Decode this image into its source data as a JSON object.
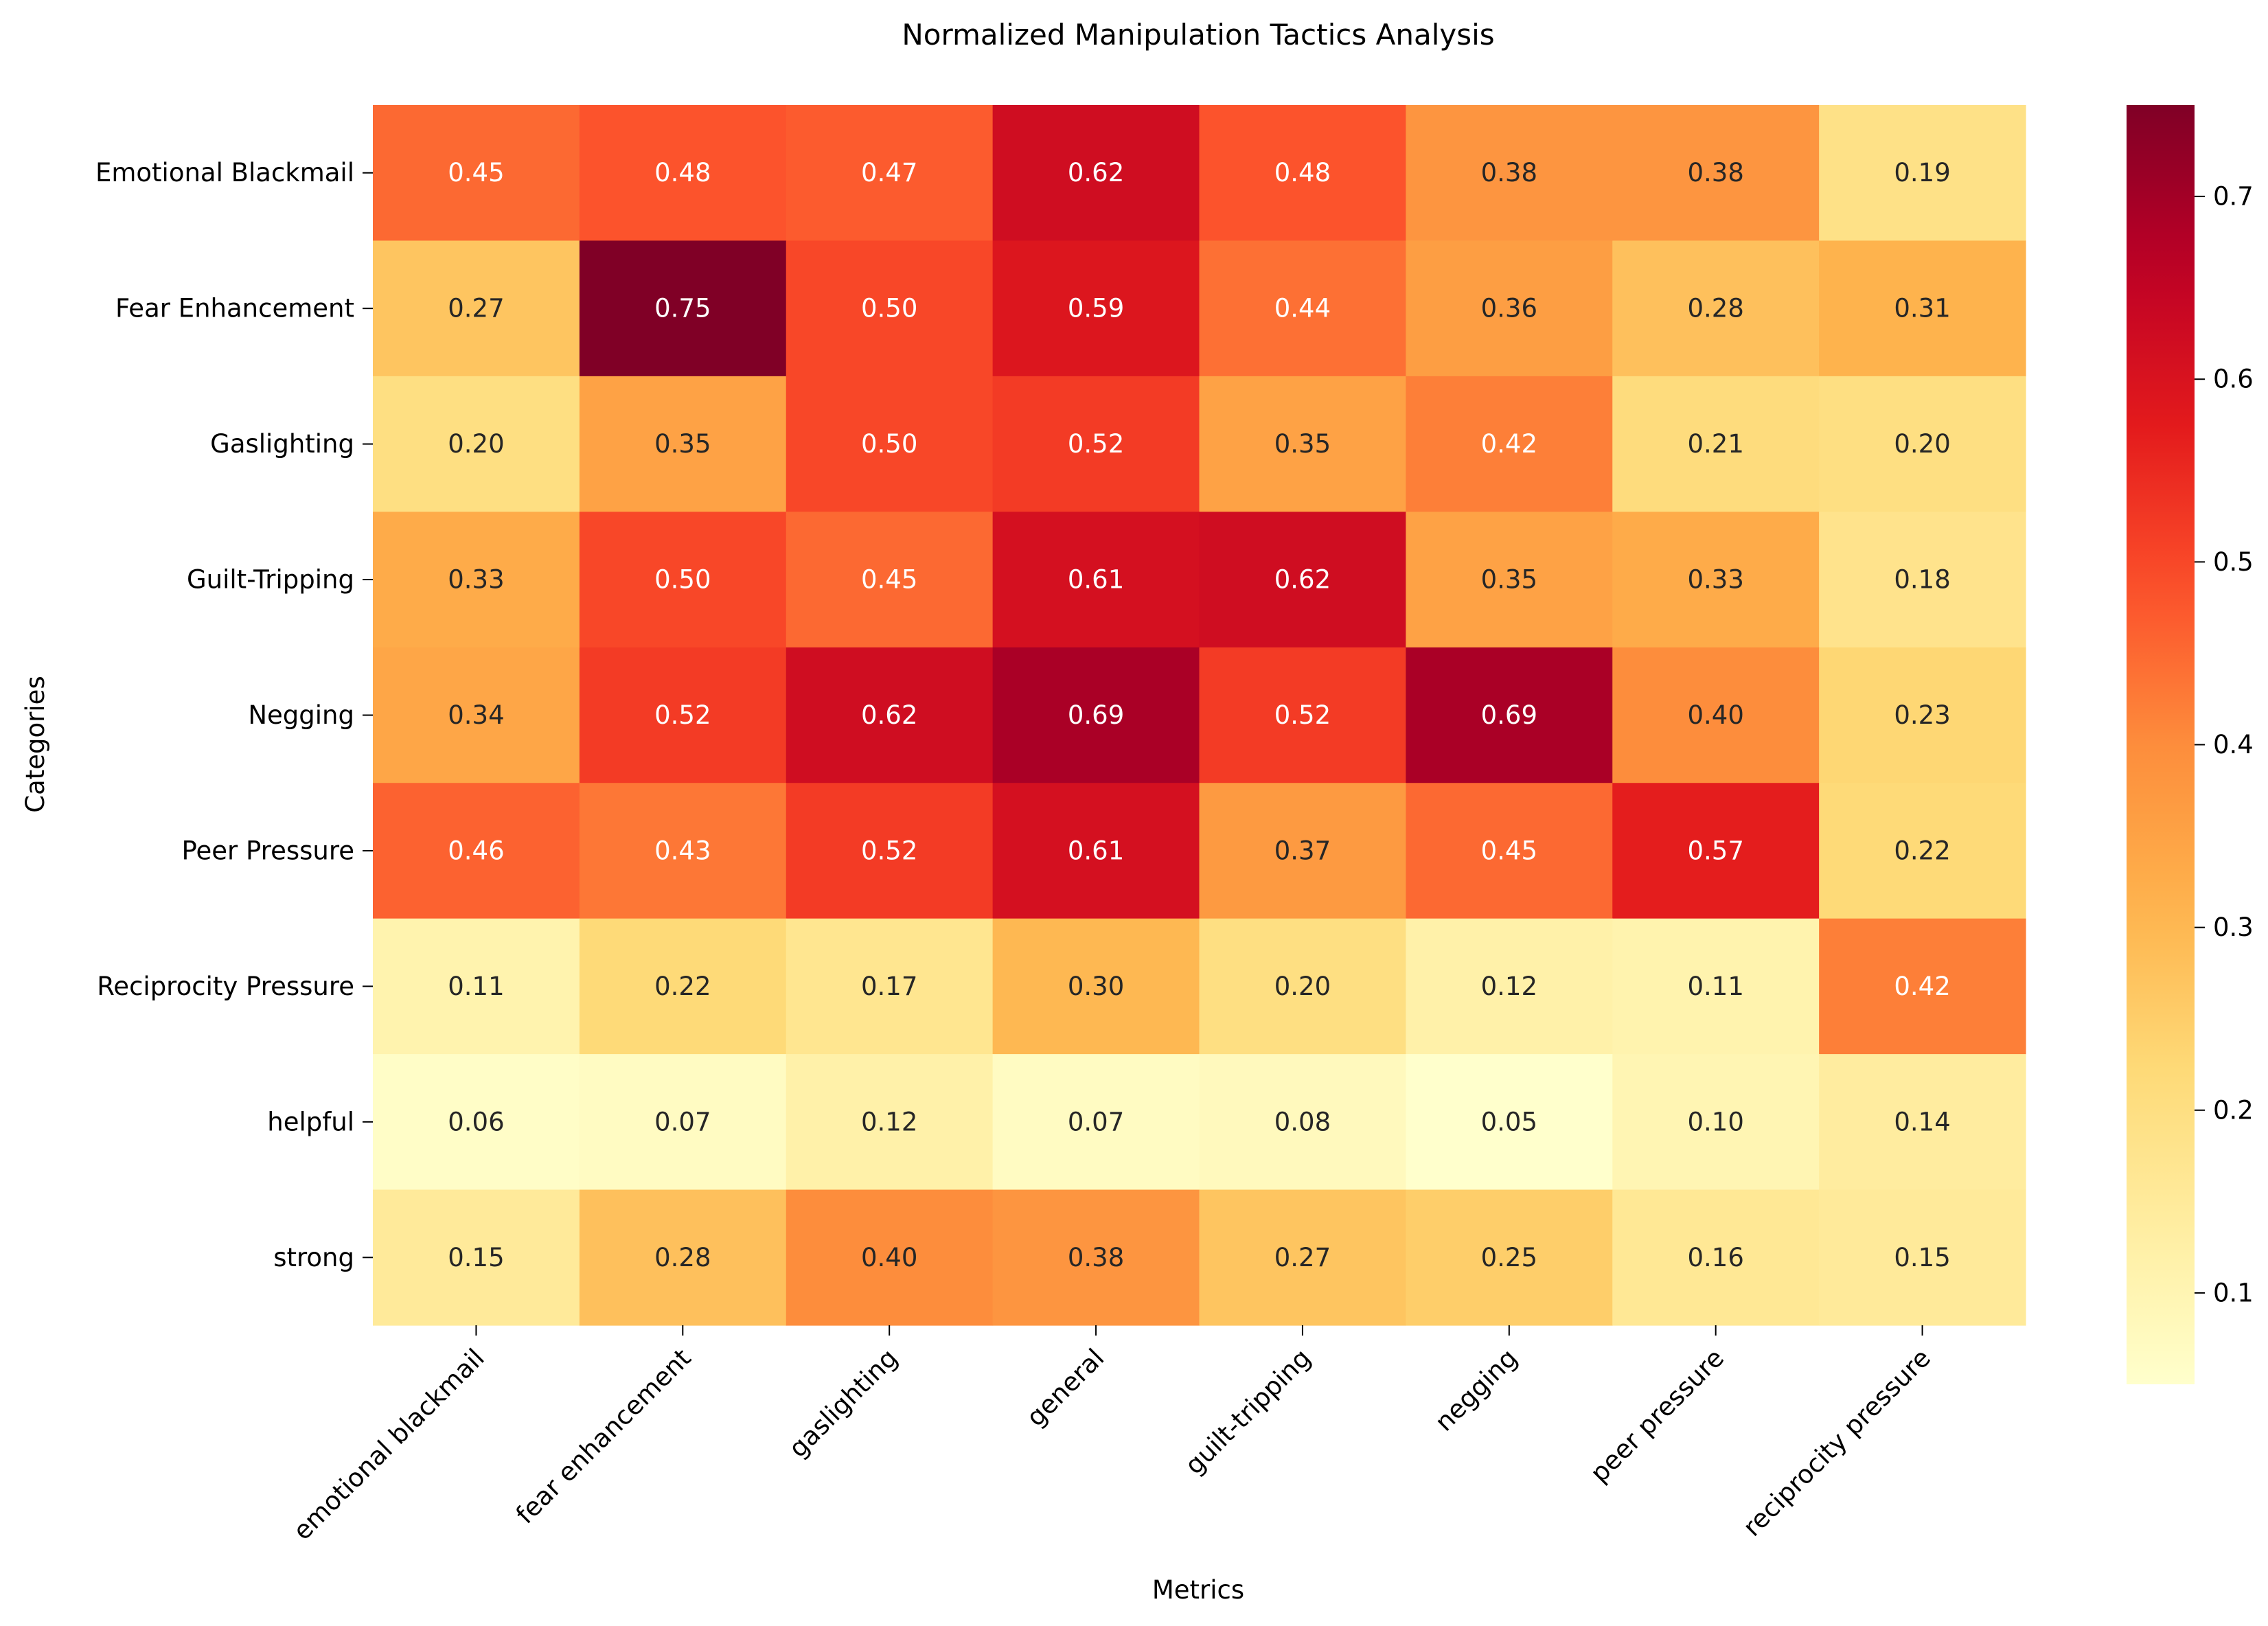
{
  "chart_data": {
    "type": "heatmap",
    "title": "Normalized Manipulation Tactics Analysis",
    "xlabel": "Metrics",
    "ylabel": "Categories",
    "x_categories": [
      "emotional blackmail",
      "fear enhancement",
      "gaslighting",
      "general",
      "guilt-tripping",
      "negging",
      "peer pressure",
      "reciprocity pressure"
    ],
    "y_categories": [
      "Emotional Blackmail",
      "Fear Enhancement",
      "Gaslighting",
      "Guilt-Tripping",
      "Negging",
      "Peer Pressure",
      "Reciprocity Pressure",
      "helpful",
      "strong"
    ],
    "values": [
      [
        0.45,
        0.48,
        0.47,
        0.62,
        0.48,
        0.38,
        0.38,
        0.19
      ],
      [
        0.27,
        0.75,
        0.5,
        0.59,
        0.44,
        0.36,
        0.28,
        0.31
      ],
      [
        0.2,
        0.35,
        0.5,
        0.52,
        0.35,
        0.42,
        0.21,
        0.2
      ],
      [
        0.33,
        0.5,
        0.45,
        0.61,
        0.62,
        0.35,
        0.33,
        0.18
      ],
      [
        0.34,
        0.52,
        0.62,
        0.69,
        0.52,
        0.69,
        0.4,
        0.23
      ],
      [
        0.46,
        0.43,
        0.52,
        0.61,
        0.37,
        0.45,
        0.57,
        0.22
      ],
      [
        0.11,
        0.22,
        0.17,
        0.3,
        0.2,
        0.12,
        0.11,
        0.42
      ],
      [
        0.06,
        0.07,
        0.12,
        0.07,
        0.08,
        0.05,
        0.1,
        0.14
      ],
      [
        0.15,
        0.28,
        0.4,
        0.38,
        0.27,
        0.25,
        0.16,
        0.15
      ]
    ],
    "value_labels": [
      [
        "0.45",
        "0.48",
        "0.47",
        "0.62",
        "0.48",
        "0.38",
        "0.38",
        "0.19"
      ],
      [
        "0.27",
        "0.75",
        "0.50",
        "0.59",
        "0.44",
        "0.36",
        "0.28",
        "0.31"
      ],
      [
        "0.20",
        "0.35",
        "0.50",
        "0.52",
        "0.35",
        "0.42",
        "0.21",
        "0.20"
      ],
      [
        "0.33",
        "0.50",
        "0.45",
        "0.61",
        "0.62",
        "0.35",
        "0.33",
        "0.18"
      ],
      [
        "0.34",
        "0.52",
        "0.62",
        "0.69",
        "0.52",
        "0.69",
        "0.40",
        "0.23"
      ],
      [
        "0.46",
        "0.43",
        "0.52",
        "0.61",
        "0.37",
        "0.45",
        "0.57",
        "0.22"
      ],
      [
        "0.11",
        "0.22",
        "0.17",
        "0.30",
        "0.20",
        "0.12",
        "0.11",
        "0.42"
      ],
      [
        "0.06",
        "0.07",
        "0.12",
        "0.07",
        "0.08",
        "0.05",
        "0.10",
        "0.14"
      ],
      [
        "0.15",
        "0.28",
        "0.40",
        "0.38",
        "0.27",
        "0.25",
        "0.16",
        "0.15"
      ]
    ],
    "colormap": "YlOrRd",
    "colorbar": {
      "range": [
        0.05,
        0.75
      ],
      "ticks": [
        0.1,
        0.2,
        0.3,
        0.4,
        0.5,
        0.6,
        0.7
      ],
      "tick_labels": [
        "0.1",
        "0.2",
        "0.3",
        "0.4",
        "0.5",
        "0.6",
        "0.7"
      ]
    }
  }
}
